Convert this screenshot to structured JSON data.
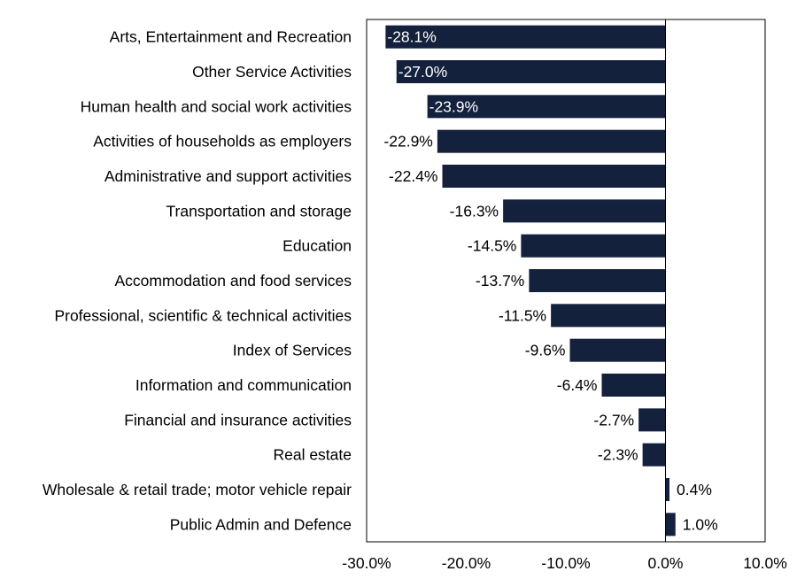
{
  "chart_data": {
    "type": "bar",
    "orientation": "horizontal",
    "title": "",
    "xlabel": "",
    "ylabel": "",
    "xlim": [
      -30,
      10
    ],
    "x_ticks": [
      -30,
      -20,
      -10,
      0,
      10
    ],
    "x_tick_labels": [
      "-30.0%",
      "-20.0%",
      "-10.0%",
      "0.0%",
      "10.0%"
    ],
    "grid": false,
    "bar_color": "#14213d",
    "label_inside_color": "#ffffff",
    "label_outside_color": "#000000",
    "categories": [
      "Arts, Entertainment and Recreation",
      "Other Service Activities",
      "Human health and social work activities",
      "Activities of households as employers",
      "Administrative and support activities",
      "Transportation and storage",
      "Education",
      "Accommodation and food services",
      "Professional, scientific & technical activities",
      "Index of Services",
      "Information and communication",
      "Financial and insurance activities",
      "Real estate",
      "Wholesale & retail trade; motor vehicle repair",
      "Public Admin and Defence"
    ],
    "values": [
      -28.1,
      -27.0,
      -23.9,
      -22.9,
      -22.4,
      -16.3,
      -14.5,
      -13.7,
      -11.5,
      -9.6,
      -6.4,
      -2.7,
      -2.3,
      0.4,
      1.0
    ],
    "value_labels": [
      "-28.1%",
      "-27.0%",
      "-23.9%",
      "-22.9%",
      "-22.4%",
      "-16.3%",
      "-14.5%",
      "-13.7%",
      "-11.5%",
      "-9.6%",
      "-6.4%",
      "-2.7%",
      "-2.3%",
      "0.4%",
      "1.0%"
    ],
    "labels_inside": [
      true,
      true,
      true,
      false,
      false,
      false,
      false,
      false,
      false,
      false,
      false,
      false,
      false,
      false,
      false
    ]
  }
}
